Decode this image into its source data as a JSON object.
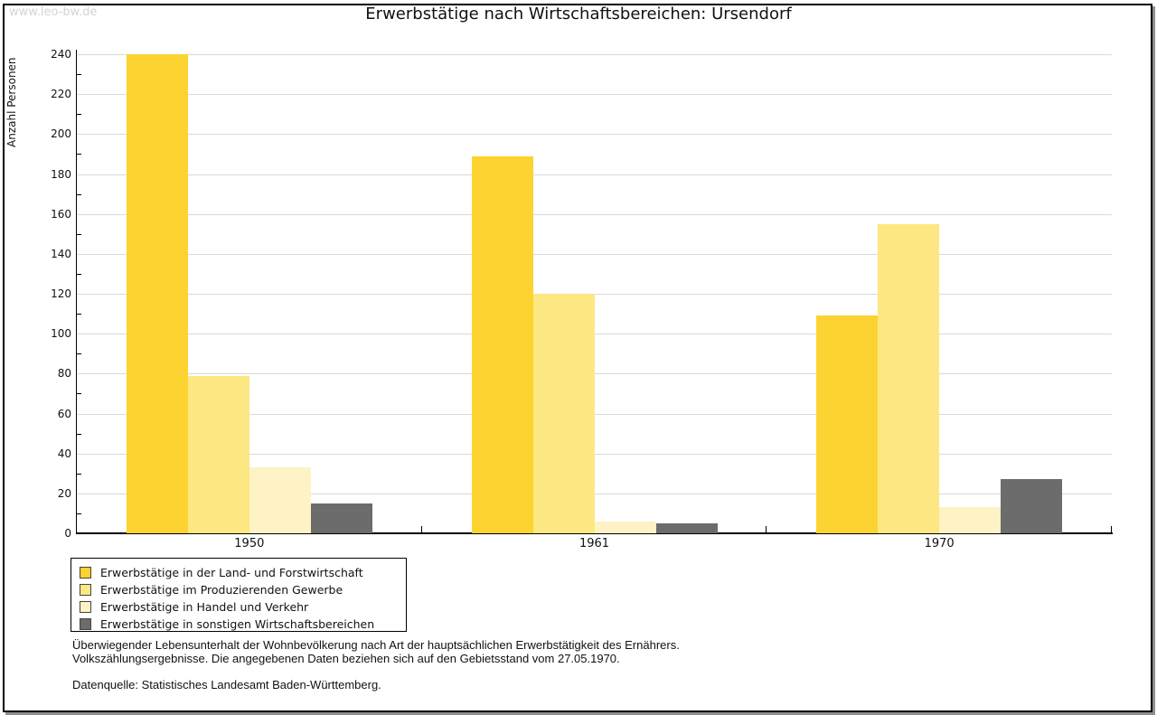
{
  "watermark": "www.leo-bw.de",
  "title": "Erwerbstätige nach Wirtschaftsbereichen: Ursendorf",
  "chart_data": {
    "type": "bar",
    "title": "Erwerbstätige nach Wirtschaftsbereichen: Ursendorf",
    "xlabel": "",
    "ylabel": "Anzahl Personen",
    "categories": [
      "1950",
      "1961",
      "1970"
    ],
    "series": [
      {
        "name": "Erwerbstätige in der Land- und Forstwirtschaft",
        "color": "#fcd330",
        "values": [
          240,
          189,
          109
        ]
      },
      {
        "name": "Erwerbstätige im Produzierenden Gewerbe",
        "color": "#fde783",
        "values": [
          79,
          120,
          155
        ]
      },
      {
        "name": "Erwerbstätige in Handel und Verkehr",
        "color": "#fdf3c4",
        "values": [
          33,
          6,
          13
        ]
      },
      {
        "name": "Erwerbstätige in sonstigen Wirtschaftsbereichen",
        "color": "#6c6c6c",
        "values": [
          15,
          5,
          27
        ]
      }
    ],
    "ylim": [
      0,
      240
    ],
    "ytick_step": 20,
    "yminortick_step": 10,
    "grid": "horizontal-major",
    "legend_position": "bottom-left"
  },
  "footnote": {
    "line1": "Überwiegender Lebensunterhalt der Wohnbevölkerung nach Art der hauptsächlichen Erwerbstätigkeit des Ernährers.",
    "line2": "Volkszählungsergebnisse. Die angegebenen Daten beziehen sich auf den Gebietsstand vom 27.05.1970.",
    "source": "Datenquelle: Statistisches Landesamt Baden-Württemberg."
  }
}
